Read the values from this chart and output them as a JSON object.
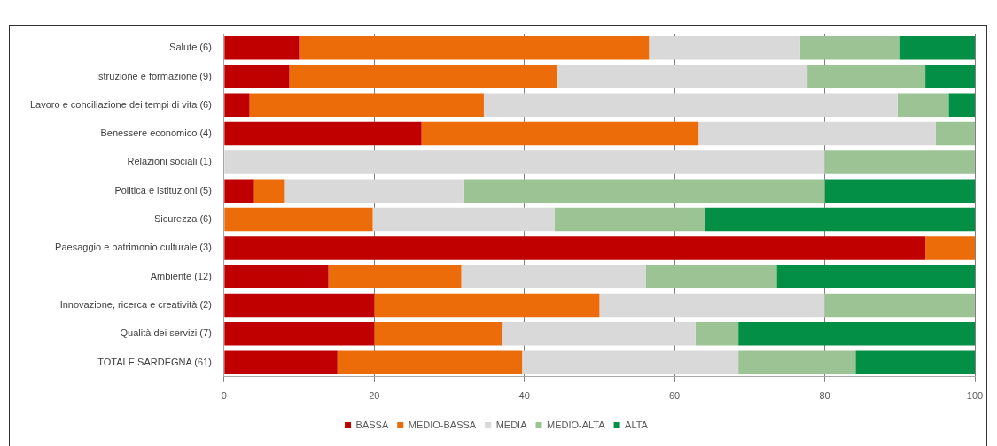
{
  "chart_data": {
    "type": "bar",
    "orientation": "horizontal",
    "stacked": true,
    "categories": [
      "Salute (6)",
      "Istruzione e formazione (9)",
      "Lavoro e conciliazione dei tempi di vita (6)",
      "Benessere economico (4)",
      "Relazioni sociali (1)",
      "Politica e istituzioni (5)",
      "Sicurezza (6)",
      "Paesaggio e patrimonio culturale (3)",
      "Ambiente (12)",
      "Innovazione, ricerca e creatività (2)",
      "Qualità dei servizi (7)",
      "TOTALE SARDEGNA (61)"
    ],
    "series": [
      {
        "name": "BASSA",
        "color": "#c00000",
        "values": [
          10,
          8.7,
          3.4,
          26.3,
          0,
          4,
          0,
          93.4,
          13.9,
          20,
          20,
          15.1
        ]
      },
      {
        "name": "MEDIO-BASSA",
        "color": "#ec6c0a",
        "values": [
          46.6,
          35.7,
          31.2,
          36.9,
          0,
          4.1,
          19.8,
          6.6,
          17.7,
          30,
          17.1,
          24.6
        ]
      },
      {
        "name": "MEDIA",
        "color": "#d9d9d9",
        "values": [
          20.1,
          33.3,
          55.1,
          31.6,
          80,
          23.9,
          24.2,
          0,
          24.6,
          30,
          25.7,
          28.8
        ]
      },
      {
        "name": "MEDIO-ALTA",
        "color": "#9bc394",
        "values": [
          13.2,
          15.7,
          6.8,
          5.2,
          20,
          48,
          20,
          0,
          17.4,
          20,
          5.7,
          15.6
        ]
      },
      {
        "name": "ALTA",
        "color": "#038f45",
        "values": [
          10.1,
          6.6,
          3.5,
          0,
          0,
          20,
          36,
          0,
          26.4,
          0,
          31.5,
          15.9
        ]
      }
    ],
    "xlim": [
      0,
      100
    ],
    "xticks": [
      0,
      20,
      40,
      60,
      80,
      100
    ],
    "grid": "x",
    "legend": "bottom"
  }
}
